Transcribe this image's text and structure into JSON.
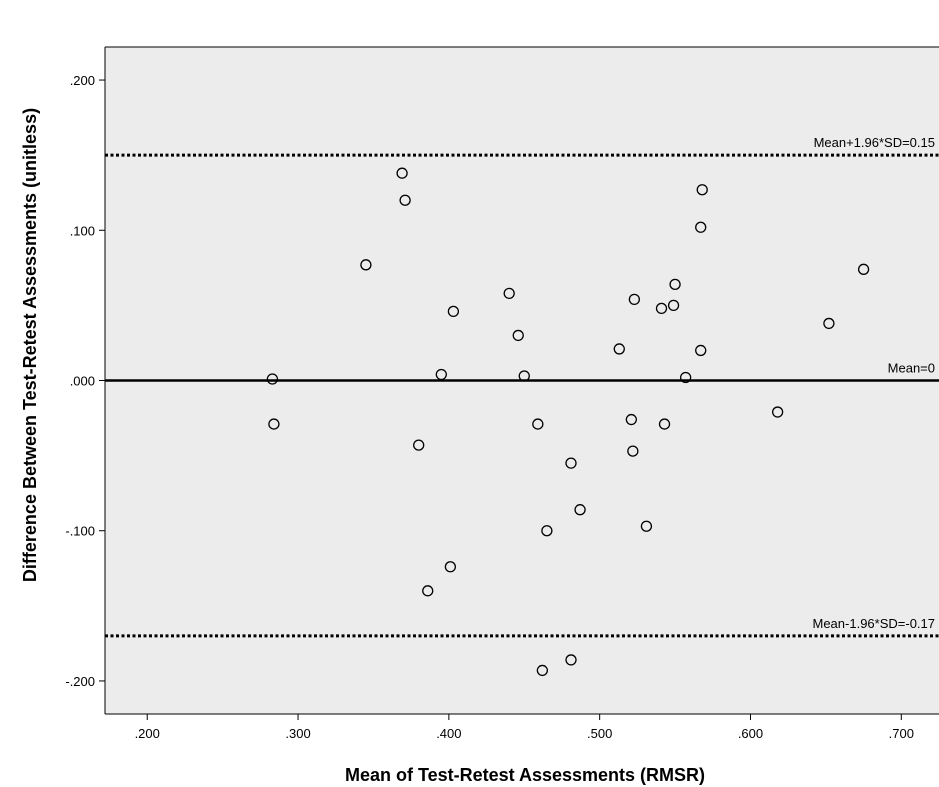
{
  "chart_data": {
    "type": "scatter",
    "title": "",
    "xlabel": "Mean of Test-Retest Assessments (RMSR)",
    "ylabel": "Difference Between Test-Retest Assessments (unitless)",
    "xlim": [
      0.172,
      0.725
    ],
    "ylim": [
      -0.222,
      0.222
    ],
    "x_ticks": [
      0.2,
      0.3,
      0.4,
      0.5,
      0.6,
      0.7
    ],
    "x_tick_labels": [
      ".200",
      ".300",
      ".400",
      ".500",
      ".600",
      ".700"
    ],
    "y_ticks": [
      0.2,
      0.1,
      0.0,
      -0.1,
      -0.2
    ],
    "y_tick_labels": [
      ".200",
      ".100",
      ".000",
      "-.100",
      "-.200"
    ],
    "grid": false,
    "plot_background": "#ececec",
    "reference_lines": [
      {
        "y": 0.15,
        "label": "Mean+1.96*SD=0.15",
        "style": "dotted"
      },
      {
        "y": 0.0,
        "label": "Mean=0",
        "style": "solid"
      },
      {
        "y": -0.17,
        "label": "Mean-1.96*SD=-0.17",
        "style": "dotted"
      }
    ],
    "points": [
      {
        "x": 0.283,
        "y": 0.001
      },
      {
        "x": 0.284,
        "y": -0.029
      },
      {
        "x": 0.345,
        "y": 0.077
      },
      {
        "x": 0.369,
        "y": 0.138
      },
      {
        "x": 0.371,
        "y": 0.12
      },
      {
        "x": 0.38,
        "y": -0.043
      },
      {
        "x": 0.386,
        "y": -0.14
      },
      {
        "x": 0.395,
        "y": 0.004
      },
      {
        "x": 0.401,
        "y": -0.124
      },
      {
        "x": 0.403,
        "y": 0.046
      },
      {
        "x": 0.44,
        "y": 0.058
      },
      {
        "x": 0.446,
        "y": 0.03
      },
      {
        "x": 0.45,
        "y": 0.003
      },
      {
        "x": 0.459,
        "y": -0.029
      },
      {
        "x": 0.462,
        "y": -0.193
      },
      {
        "x": 0.465,
        "y": -0.1
      },
      {
        "x": 0.481,
        "y": -0.055
      },
      {
        "x": 0.481,
        "y": -0.186
      },
      {
        "x": 0.487,
        "y": -0.086
      },
      {
        "x": 0.513,
        "y": 0.021
      },
      {
        "x": 0.521,
        "y": -0.026
      },
      {
        "x": 0.522,
        "y": -0.047
      },
      {
        "x": 0.523,
        "y": 0.054
      },
      {
        "x": 0.531,
        "y": -0.097
      },
      {
        "x": 0.541,
        "y": 0.048
      },
      {
        "x": 0.543,
        "y": -0.029
      },
      {
        "x": 0.549,
        "y": 0.05
      },
      {
        "x": 0.55,
        "y": 0.064
      },
      {
        "x": 0.557,
        "y": 0.002
      },
      {
        "x": 0.567,
        "y": 0.02
      },
      {
        "x": 0.567,
        "y": 0.102
      },
      {
        "x": 0.568,
        "y": 0.127
      },
      {
        "x": 0.618,
        "y": -0.021
      },
      {
        "x": 0.652,
        "y": 0.038
      },
      {
        "x": 0.675,
        "y": 0.074
      }
    ]
  }
}
